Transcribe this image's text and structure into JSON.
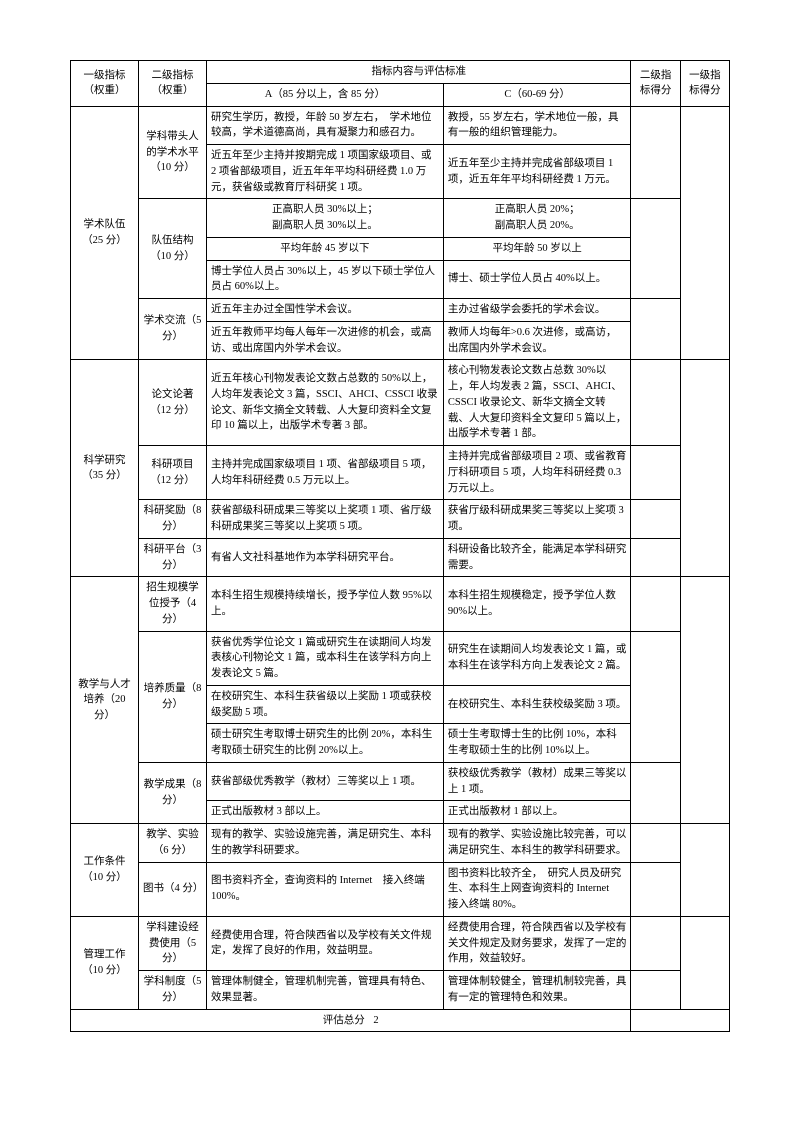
{
  "hdr": {
    "l1": "一级指标（权重）",
    "l2": "二级指标（权重）",
    "content": "指标内容与评估标准",
    "colA": "A（85 分以上，含 85 分）",
    "colC": "C（60-69 分）",
    "s2": "二级指标得分",
    "s1": "一级指标得分"
  },
  "g1": {
    "title": "学术队伍（25 分）",
    "s1": {
      "t": "学科带头人的学术水平（10 分）",
      "a1": "研究生学历，教授，年龄 50 岁左右，　学术地位较高，学术道德高尚，具有凝聚力和感召力。",
      "c1": "教授，55 岁左右，学术地位一般，具有一般的组织管理能力。",
      "a2": "近五年至少主持并按期完成 1 项国家级项目、或 2 项省部级项目，近五年年平均科研经费 1.0 万元，获省级或教育厅科研奖 1 项。",
      "c2": "近五年至少主持并完成省部级项目 1 项，近五年年平均科研经费 1 万元。"
    },
    "s2": {
      "t": "队伍结构（10 分）",
      "a1": "正高职人员 30%以上；\n副高职人员 30%以上。",
      "c1": "正高职人员 20%；\n副高职人员 20%。",
      "a2": "平均年龄 45 岁以下",
      "c2": "平均年龄 50 岁以上",
      "a3": "博士学位人员占 30%以上，45 岁以下硕士学位人员占 60%以上。",
      "c3": "博士、硕士学位人员占 40%以上。"
    },
    "s3": {
      "t": "学术交流（5 分）",
      "a1": "近五年主办过全国性学术会议。",
      "c1": "主办过省级学会委托的学术会议。",
      "a2": "近五年教师平均每人每年一次进修的机会，或高访、或出席国内外学术会议。",
      "c2": "教师人均每年>0.6 次进修，或高访，出席国内外学术会议。"
    }
  },
  "g2": {
    "title": "科学研究（35 分）",
    "s1": {
      "t": "论文论著（12 分）",
      "a": "近五年核心刊物发表论文数占总数的 50%以上，人均年发表论文 3 篇，SSCI、AHCI、CSSCI 收录论文、新华文摘全文转载、人大复印资料全文复印 10 篇以上，出版学术专著 3 部。",
      "c": "核心刊物发表论文数占总数 30%以上，年人均发表 2 篇，SSCI、AHCI、CSSCI 收录论文、新华文摘全文转载、人大复印资料全文复印 5 篇以上，出版学术专著 1 部。"
    },
    "s2": {
      "t": "科研项目（12 分）",
      "a": "主持并完成国家级项目 1 项、省部级项目 5 项，人均年科研经费 0.5 万元以上。",
      "c": "主持并完成省部级项目 2 项、或省教育厅科研项目 5 项，人均年科研经费 0.3 万元以上。"
    },
    "s3": {
      "t": "科研奖励（8 分）",
      "a": "获省部级科研成果三等奖以上奖项 1 项、省厅级科研成果奖三等奖以上奖项 5 项。",
      "c": "获省厅级科研成果奖三等奖以上奖项 3 项。"
    },
    "s4": {
      "t": "科研平台（3 分）",
      "a": "有省人文社科基地作为本学科研究平台。",
      "c": "科研设备比较齐全，能满足本学科研究需要。"
    }
  },
  "g3": {
    "title": "教学与人才培养（20 分）",
    "s1": {
      "t": "招生规模学位授予（4 分）",
      "a": "本科生招生规模持续增长，授予学位人数 95%以上。",
      "c": "本科生招生规模稳定，授予学位人数 90%以上。"
    },
    "s2": {
      "t": "培养质量（8 分）",
      "a1": "获省优秀学位论文 1 篇或研究生在读期间人均发表核心刊物论文 1 篇，或本科生在该学科方向上发表论文 5 篇。",
      "c1": "研究生在读期间人均发表论文 1 篇，或本科生在该学科方向上发表论文 2 篇。",
      "a2": "在校研究生、本科生获省级以上奖励 1 项或获校级奖励 5 项。",
      "c2": "在校研究生、本科生获校级奖励 3 项。",
      "a3": "硕士研究生考取博士研究生的比例 20%，本科生考取硕士研究生的比例 20%以上。",
      "c3": "硕士生考取博士生的比例 10%，本科生考取硕士生的比例 10%以上。"
    },
    "s3": {
      "t": "教学成果（8 分）",
      "a1": "获省部级优秀教学（教材）三等奖以上 1 项。",
      "c1": "获校级优秀教学（教材）成果三等奖以上 1 项。",
      "a2": "正式出版教材 3 部以上。",
      "c2": "正式出版教材 1 部以上。"
    }
  },
  "g4": {
    "title": "工作条件（10 分）",
    "s1": {
      "t": "教学、实验（6 分）",
      "a": "现有的教学、实验设施完善，满足研究生、本科生的教学科研要求。",
      "c": "现有的教学、实验设施比较完善，可以满足研究生、本科生的教学科研要求。"
    },
    "s2": {
      "t": "图书（4 分）",
      "a": "图书资料齐全，查询资料的 Internet　接入终端 100%。",
      "c": "图书资料比较齐全，　研究人员及研究生、本科生上网查询资料的 Internet　接入终端 80%。"
    }
  },
  "g5": {
    "title": "管理工作（10 分）",
    "s1": {
      "t": "学科建设经费使用（5 分）",
      "a": "经费使用合理，符合陕西省以及学校有关文件规定，发挥了良好的作用，效益明显。",
      "c": "经费使用合理，符合陕西省以及学校有关文件规定及财务要求，发挥了一定的作用，效益较好。"
    },
    "s2": {
      "t": "学科制度（5 分）",
      "a": "管理体制健全，管理机制完善，管理具有特色、效果显著。",
      "c": "管理体制较健全，管理机制较完善，具有一定的管理特色和效果。"
    }
  },
  "footer": {
    "label": "评估总分",
    "page": "2"
  }
}
